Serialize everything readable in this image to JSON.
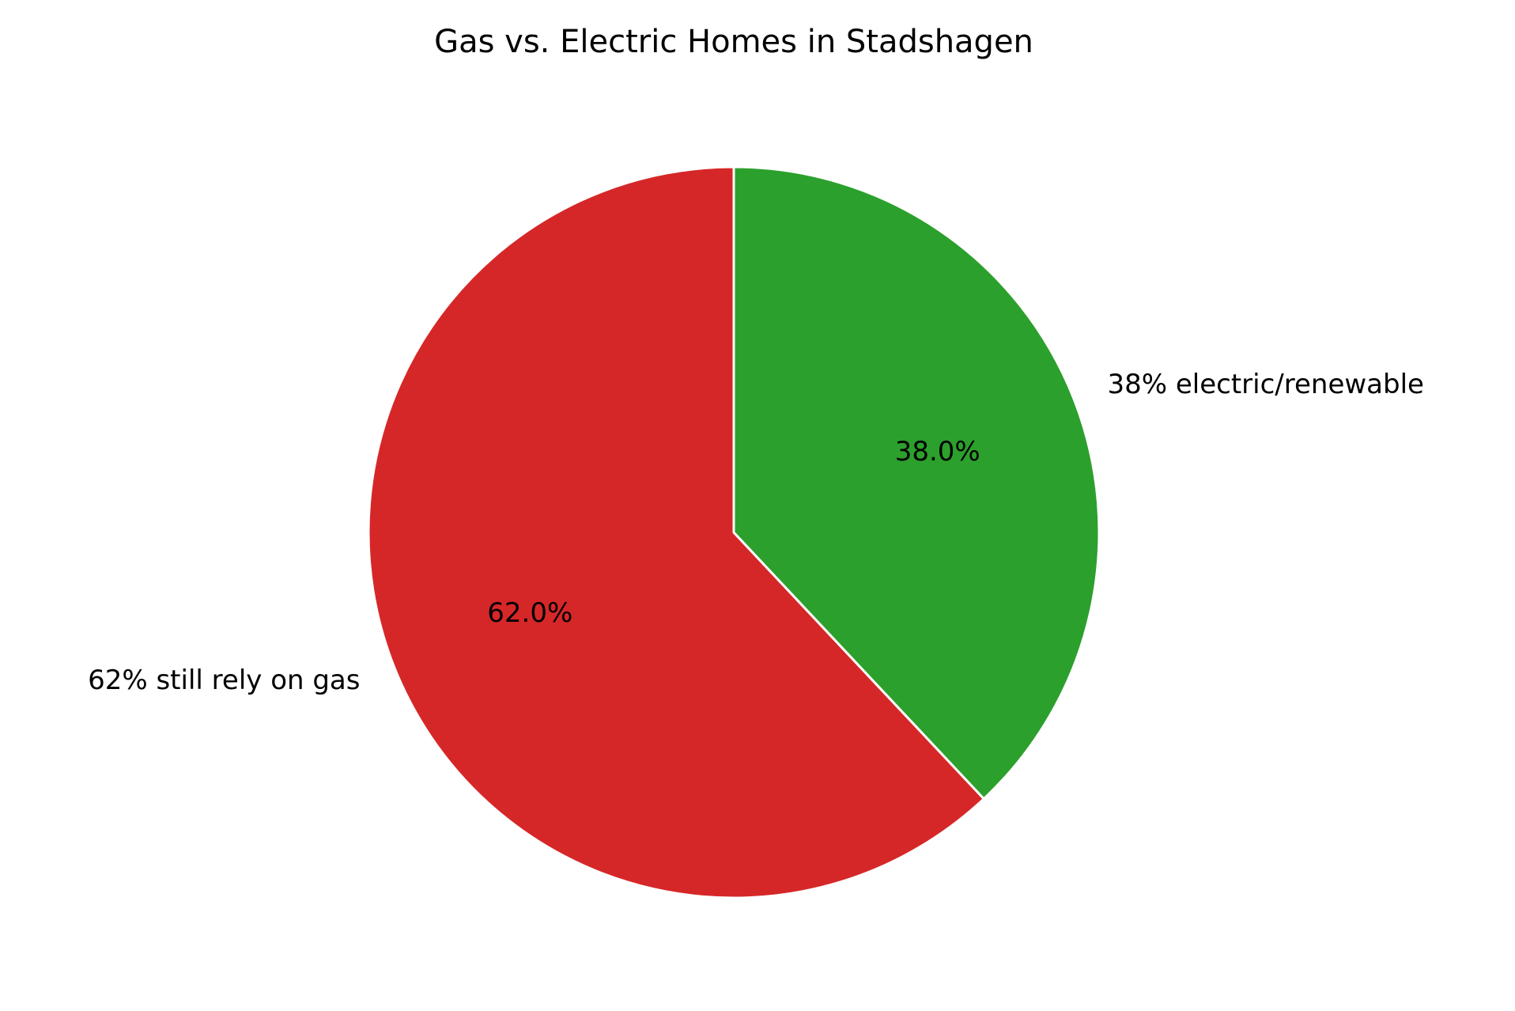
{
  "chart_data": {
    "type": "pie",
    "title": "Gas vs. Electric Homes in Stadshagen",
    "slices": [
      {
        "label": "62% still rely on gas",
        "value": 62,
        "pct_label": "62.0%",
        "color": "#d62728"
      },
      {
        "label": "38% electric/renewable",
        "value": 38,
        "pct_label": "38.0%",
        "color": "#2ca02c"
      }
    ],
    "start_angle_deg": 90,
    "direction": "counterclockwise",
    "edge_color": "#ffffff"
  }
}
